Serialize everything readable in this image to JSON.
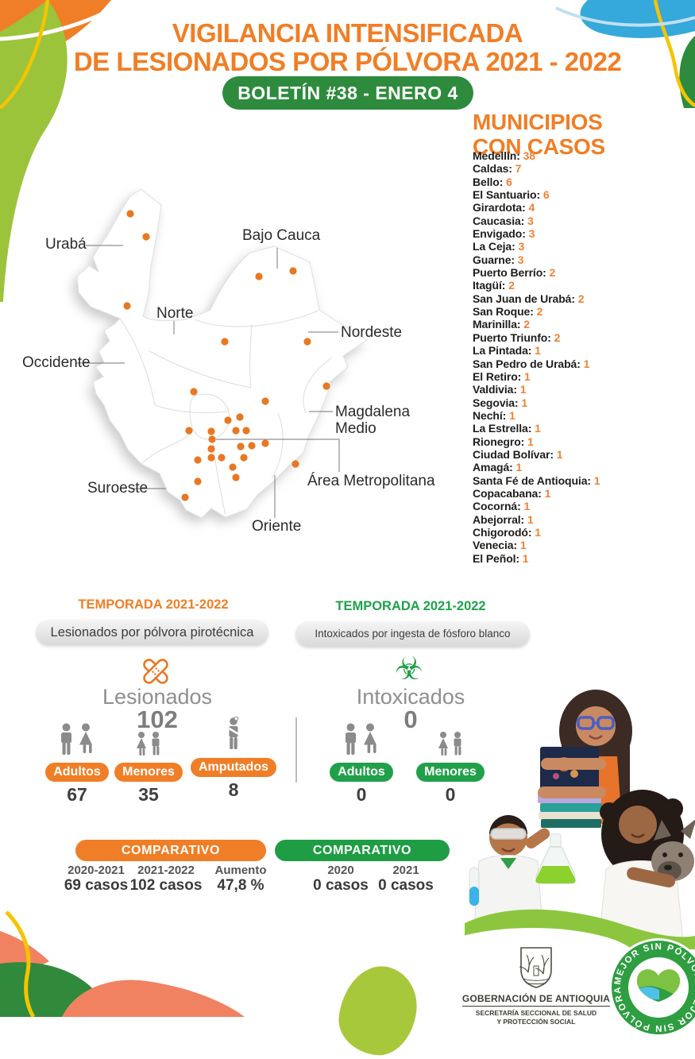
{
  "header": {
    "title_line1": "VIGILANCIA INTENSIFICADA",
    "title_line2": "DE LESIONADOS POR PÓLVORA 2021 - 2022",
    "bulletin": "BOLETÍN #38 - ENERO 4"
  },
  "map": {
    "labels": [
      {
        "text": "Urabá"
      },
      {
        "text": "Bajo Cauca"
      },
      {
        "text": "Norte"
      },
      {
        "text": "Nordeste"
      },
      {
        "text": "Occidente"
      },
      {
        "text": "Magdalena\nMedio"
      },
      {
        "text": "Área Metropolitana"
      },
      {
        "text": "Suroeste"
      },
      {
        "text": "Oriente"
      }
    ],
    "dot_color": "#E87722",
    "dots": [
      [
        144,
        39
      ],
      [
        164,
        68
      ],
      [
        140,
        155
      ],
      [
        306,
        118
      ],
      [
        349,
        111
      ],
      [
        263,
        200
      ],
      [
        367,
        200
      ],
      [
        224,
        263
      ],
      [
        314,
        275
      ],
      [
        391,
        256
      ],
      [
        282,
        295
      ],
      [
        267,
        299
      ],
      [
        218,
        312
      ],
      [
        246,
        313
      ],
      [
        277,
        312
      ],
      [
        290,
        312
      ],
      [
        247,
        323
      ],
      [
        246,
        335
      ],
      [
        283,
        332
      ],
      [
        297,
        331
      ],
      [
        314,
        328
      ],
      [
        246,
        346
      ],
      [
        259,
        346
      ],
      [
        287,
        346
      ],
      [
        229,
        349
      ],
      [
        273,
        358
      ],
      [
        352,
        354
      ],
      [
        277,
        371
      ],
      [
        229,
        376
      ],
      [
        213,
        396
      ]
    ]
  },
  "municipios": {
    "title_line1": "MUNICIPIOS",
    "title_line2": "CON CASOS",
    "items": [
      {
        "name": "Medellín",
        "value": 38
      },
      {
        "name": "Caldas",
        "value": 7
      },
      {
        "name": "Bello",
        "value": 6
      },
      {
        "name": "El Santuario",
        "value": 6
      },
      {
        "name": "Girardota",
        "value": 4
      },
      {
        "name": "Caucasia",
        "value": 3
      },
      {
        "name": "Envigado",
        "value": 3
      },
      {
        "name": "La Ceja",
        "value": 3
      },
      {
        "name": "Guarne",
        "value": 3
      },
      {
        "name": "Puerto Berrío",
        "value": 2
      },
      {
        "name": "Itagüí",
        "value": 2
      },
      {
        "name": "San Juan de Urabá",
        "value": 2
      },
      {
        "name": "San Roque",
        "value": 2
      },
      {
        "name": "Marinilla",
        "value": 2
      },
      {
        "name": "Puerto Triunfo",
        "value": 2
      },
      {
        "name": "La Pintada",
        "value": 1
      },
      {
        "name": "San Pedro de Urabá",
        "value": 1
      },
      {
        "name": "El Retiro",
        "value": 1
      },
      {
        "name": "Valdivia",
        "value": 1
      },
      {
        "name": "Segovia",
        "value": 1
      },
      {
        "name": "Nechí",
        "value": 1
      },
      {
        "name": "La Estrella",
        "value": 1
      },
      {
        "name": "Rionegro",
        "value": 1
      },
      {
        "name": "Ciudad Bolívar",
        "value": 1
      },
      {
        "name": "Amagá",
        "value": 1
      },
      {
        "name": "Santa Fé de Antioquia",
        "value": 1
      },
      {
        "name": "Copacabana",
        "value": 1
      },
      {
        "name": "Cocorná",
        "value": 1
      },
      {
        "name": "Abejorral",
        "value": 1
      },
      {
        "name": "Chigorodó",
        "value": 1
      },
      {
        "name": "Venecia",
        "value": 1
      },
      {
        "name": "El Peñol",
        "value": 1
      }
    ]
  },
  "sections": {
    "polvora": {
      "heading": "TEMPORADA 2021-2022",
      "subtitle": "Lesionados por pólvora pirotécnica",
      "icon_name": "crossed-bandages-icon",
      "label": "Lesionados",
      "total": "102",
      "stats": [
        {
          "label": "Adultos",
          "value": "67",
          "icon_name": "adults-icon"
        },
        {
          "label": "Menores",
          "value": "35",
          "icon_name": "children-icon"
        },
        {
          "label": "Amputados",
          "value": "8",
          "icon_name": "amputee-icon"
        }
      ],
      "comparativo": {
        "title": "COMPARATIVO",
        "columns": [
          {
            "label": "2020-2021",
            "value": "69 casos"
          },
          {
            "label": "2021-2022",
            "value": "102 casos"
          },
          {
            "label": "Aumento",
            "value": "47,8 %"
          }
        ]
      }
    },
    "fosforo": {
      "heading": "TEMPORADA 2021-2022",
      "subtitle": "Intoxicados por ingesta de fósforo blanco",
      "icon_name": "biohazard-icon",
      "icon_glyph": "☣",
      "label": "Intoxicados",
      "total": "0",
      "stats": [
        {
          "label": "Adultos",
          "value": "0",
          "icon_name": "adults-icon"
        },
        {
          "label": "Menores",
          "value": "0",
          "icon_name": "children-icon"
        }
      ],
      "comparativo": {
        "title": "COMPARATIVO",
        "columns": [
          {
            "label": "2020",
            "value": "0 casos"
          },
          {
            "label": "2021",
            "value": "0 casos"
          }
        ]
      }
    }
  },
  "footer": {
    "gobernacion": "GOBERNACIÓN DE ANTIOQUIA",
    "secretaria_line1": "SECRETARÍA SECCIONAL DE SALUD",
    "secretaria_line2": "Y PROTECCIÓN SOCIAL",
    "badge_text": "MEJOR SIN PÓLVORA •",
    "badge_icon": "heart-landscape-icon",
    "crest_icon": "antioquia-crest-icon"
  },
  "colors": {
    "orange": "#F07E26",
    "dot_orange": "#E87722",
    "green_dark": "#2E8B3E",
    "green_bright": "#1FA24A",
    "gray_text": "#8F8F8F",
    "yellow": "#F5C400",
    "blue": "#35A8DC",
    "lime": "#A8C83C",
    "salmon": "#F08262"
  }
}
